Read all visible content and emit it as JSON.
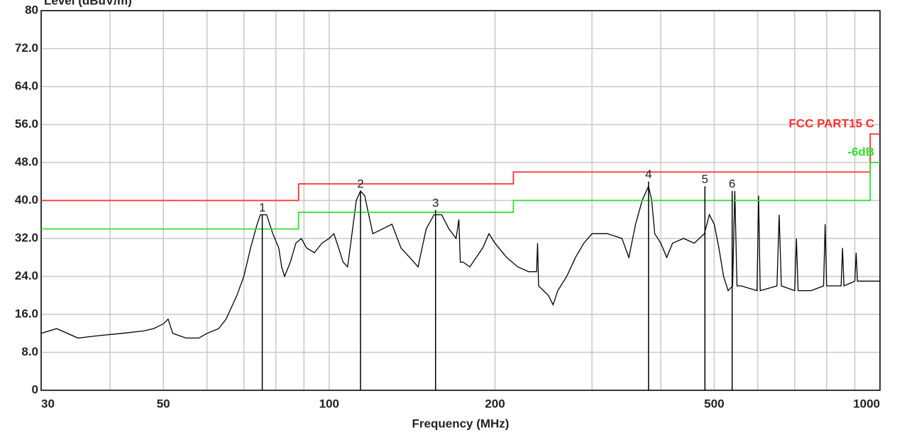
{
  "chart_data": {
    "type": "line",
    "ylabel": "Level (dBuV/m)",
    "xlabel": "Frequency (MHz)",
    "xlog": true,
    "grid": true,
    "xlim": [
      30,
      1000
    ],
    "ylim": [
      0,
      80
    ],
    "xticks": [
      30,
      50,
      100,
      200,
      500,
      1000
    ],
    "xminor": [
      40,
      60,
      70,
      80,
      90,
      300,
      400,
      600,
      700,
      800,
      900
    ],
    "yticks": [
      0,
      {
        "value": 8,
        "label": "8.0"
      },
      {
        "value": 16,
        "label": "16.0"
      },
      {
        "value": 24,
        "label": "24.0"
      },
      {
        "value": 32,
        "label": "32.0"
      },
      {
        "value": 40,
        "label": "40.0"
      },
      {
        "value": 48,
        "label": "48.0"
      },
      {
        "value": 56,
        "label": "56.0"
      },
      {
        "value": 64,
        "label": "64.0"
      },
      {
        "value": 72,
        "label": "72.0"
      },
      80
    ],
    "series": [
      {
        "name": "FCC PART15 C",
        "color": "#ff3030",
        "x": [
          30,
          88,
          88,
          216,
          216,
          960,
          960,
          1000
        ],
        "values": [
          40,
          40,
          43.5,
          43.5,
          46,
          46,
          54,
          54
        ]
      },
      {
        "name": "-6dB",
        "color": "#30e030",
        "x": [
          30,
          88,
          88,
          216,
          216,
          960,
          960,
          1000
        ],
        "values": [
          34,
          34,
          37.5,
          37.5,
          40,
          40,
          48,
          48
        ]
      }
    ],
    "trace": {
      "color": "#000000",
      "x": [
        30,
        32,
        35,
        38,
        42,
        46,
        48,
        50,
        51,
        52,
        55,
        58,
        60,
        63,
        65,
        68,
        70,
        72,
        74,
        75,
        77,
        79,
        81,
        82,
        83,
        85,
        87,
        89,
        91,
        94,
        97,
        100,
        102,
        104,
        106,
        108,
        110,
        112,
        114,
        116,
        118,
        120,
        125,
        130,
        135,
        140,
        145,
        150,
        155,
        160,
        165,
        170,
        172,
        173,
        175,
        180,
        190,
        195,
        200,
        210,
        220,
        230,
        238,
        239,
        240,
        250,
        255,
        260,
        270,
        280,
        290,
        300,
        320,
        340,
        350,
        360,
        370,
        380,
        385,
        390,
        400,
        410,
        420,
        440,
        460,
        480,
        490,
        500,
        510,
        520,
        530,
        540,
        545,
        550,
        560,
        598,
        602,
        606,
        650,
        656,
        662,
        700,
        705,
        710,
        750,
        790,
        795,
        800,
        850,
        855,
        860,
        900,
        905,
        910,
        950,
        1000
      ],
      "values": [
        12,
        13,
        11,
        11.5,
        12,
        12.5,
        13,
        14,
        15,
        12,
        11,
        11,
        12,
        13,
        15,
        20,
        24,
        30,
        35,
        37,
        37,
        33,
        30,
        26,
        24,
        27,
        31,
        32,
        30,
        29,
        31,
        32,
        33,
        30,
        27,
        26,
        33,
        40,
        42,
        41,
        37,
        33,
        34,
        35,
        30,
        28,
        26,
        34,
        37,
        37,
        34,
        32,
        36,
        27,
        27,
        26,
        30,
        33,
        31,
        28,
        26,
        25,
        25,
        31,
        22,
        20,
        18,
        21,
        24,
        28,
        31,
        33,
        33,
        32,
        28,
        35,
        40,
        43,
        40,
        33,
        31,
        28,
        31,
        32,
        31,
        33,
        37,
        35,
        30,
        24,
        21,
        22,
        42,
        22,
        22,
        21,
        41,
        21,
        22,
        37,
        22,
        21,
        32,
        21,
        21,
        22,
        35,
        22,
        22,
        30,
        22,
        23,
        29,
        23,
        23,
        23
      ]
    },
    "markers": [
      {
        "label": "1",
        "x": 75.6,
        "y": 37
      },
      {
        "label": "2",
        "x": 114,
        "y": 42
      },
      {
        "label": "3",
        "x": 156,
        "y": 38
      },
      {
        "label": "4",
        "x": 380,
        "y": 44
      },
      {
        "label": "5",
        "x": 481,
        "y": 43
      },
      {
        "label": "6",
        "x": 539,
        "y": 42
      }
    ]
  }
}
